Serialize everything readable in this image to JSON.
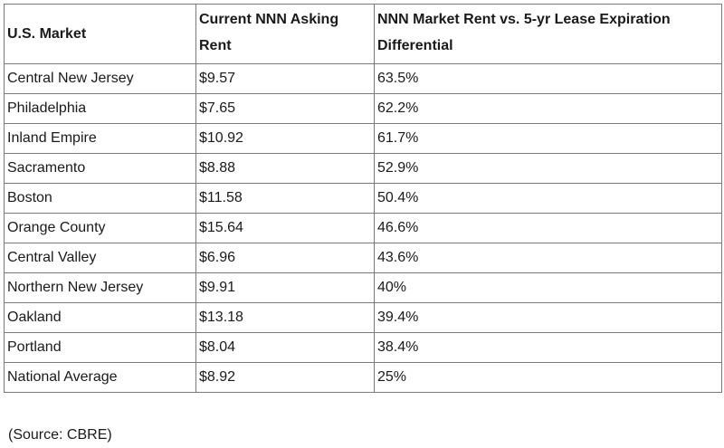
{
  "table": {
    "headers": [
      "U.S. Market",
      "Current NNN Asking Rent",
      "NNN Market Rent vs. 5-yr Lease Expiration Differential"
    ],
    "rows": [
      [
        "Central New Jersey",
        "$9.57",
        "63.5%"
      ],
      [
        "Philadelphia",
        "$7.65",
        "62.2%"
      ],
      [
        "Inland Empire",
        "$10.92",
        "61.7%"
      ],
      [
        "Sacramento",
        "$8.88",
        "52.9%"
      ],
      [
        "Boston",
        "$11.58",
        "50.4%"
      ],
      [
        "Orange County",
        "$15.64",
        "46.6%"
      ],
      [
        "Central Valley",
        "$6.96",
        "43.6%"
      ],
      [
        "Northern New Jersey",
        "$9.91",
        "40%"
      ],
      [
        "Oakland",
        "$13.18",
        "39.4%"
      ],
      [
        "Portland",
        "$8.04",
        "38.4%"
      ],
      [
        "National Average",
        "$8.92",
        "25%"
      ]
    ]
  },
  "source": "(Source: CBRE)"
}
